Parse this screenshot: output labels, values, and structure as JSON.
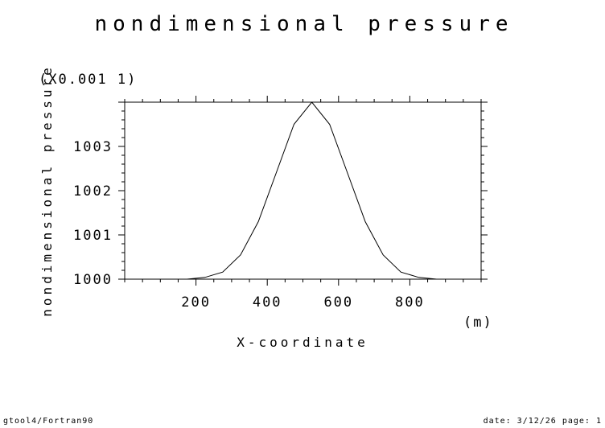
{
  "chart_data": {
    "type": "line",
    "title": "nondimensional pressure",
    "xlabel": "X-coordinate",
    "x_unit": "(m)",
    "ylabel": "nondimensional pressure",
    "y_scale_note": "(X0.001 1)",
    "xlim": [
      0,
      1000
    ],
    "ylim": [
      1000,
      1004
    ],
    "x_ticks": [
      200,
      400,
      600,
      800
    ],
    "y_ticks": [
      1000,
      1001,
      1002,
      1003
    ],
    "grid": false,
    "series": [
      {
        "x": [
          25,
          75,
          125,
          175,
          225,
          275,
          325,
          375,
          425,
          475,
          525,
          575,
          625,
          675,
          725,
          775,
          825,
          875,
          925,
          975
        ],
        "y": [
          1000.0,
          1000.0,
          1000.0,
          1000.0,
          1000.04,
          1000.16,
          1000.55,
          1001.3,
          1002.4,
          1003.5,
          1004.0,
          1003.5,
          1002.4,
          1001.3,
          1000.55,
          1000.16,
          1000.04,
          1000.0,
          1000.0,
          1000.0
        ]
      }
    ]
  },
  "footer": {
    "left": "gtool4/Fortran90",
    "right": "date: 3/12/26 page: 1"
  },
  "colors": {
    "line": "#000000",
    "axis": "#000000",
    "background": "#ffffff"
  }
}
